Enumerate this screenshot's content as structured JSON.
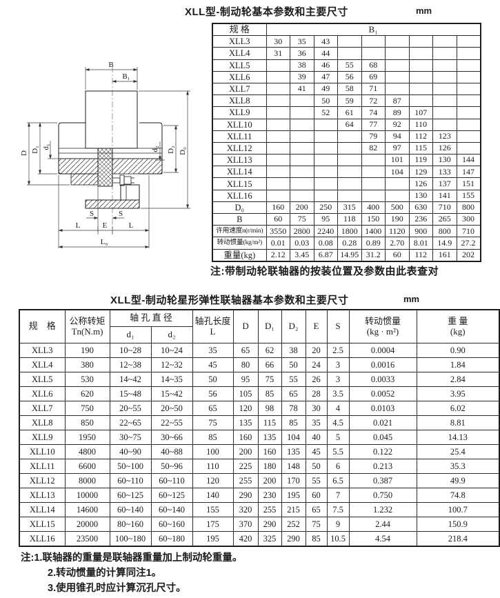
{
  "section1": {
    "title": "XLL型-制动轮基本参数和主要尺寸",
    "unit": "mm",
    "note": "注:带制动轮联轴器的按装位置及参数由此表查对"
  },
  "table1": {
    "header": [
      [
        {
          "t": "规 格"
        },
        {
          "t": "B₁",
          "colspan": 9
        }
      ]
    ],
    "rows": [
      [
        "XLL3",
        "30",
        "35",
        "43",
        "",
        "",
        "",
        "",
        "",
        ""
      ],
      [
        "XLL4",
        "31",
        "36",
        "44",
        "",
        "",
        "",
        "",
        "",
        ""
      ],
      [
        "XLL5",
        "",
        "38",
        "46",
        "55",
        "68",
        "",
        "",
        "",
        ""
      ],
      [
        "XLL6",
        "",
        "39",
        "47",
        "56",
        "69",
        "",
        "",
        "",
        ""
      ],
      [
        "XLL7",
        "",
        "41",
        "49",
        "58",
        "71",
        "",
        "",
        "",
        ""
      ],
      [
        "XLL8",
        "",
        "",
        "50",
        "59",
        "72",
        "87",
        "",
        "",
        ""
      ],
      [
        "XLL9",
        "",
        "",
        "52",
        "61",
        "74",
        "89",
        "107",
        "",
        ""
      ],
      [
        "XLL10",
        "",
        "",
        "",
        "64",
        "77",
        "92",
        "110",
        "",
        ""
      ],
      [
        "XLL11",
        "",
        "",
        "",
        "",
        "79",
        "94",
        "112",
        "123",
        ""
      ],
      [
        "XLL12",
        "",
        "",
        "",
        "",
        "82",
        "97",
        "115",
        "126",
        ""
      ],
      [
        "XLL13",
        "",
        "",
        "",
        "",
        "",
        "101",
        "119",
        "130",
        "144"
      ],
      [
        "XLL14",
        "",
        "",
        "",
        "",
        "",
        "104",
        "129",
        "133",
        "147"
      ],
      [
        "XLL15",
        "",
        "",
        "",
        "",
        "",
        "",
        "126",
        "137",
        "151"
      ],
      [
        "XLL16",
        "",
        "",
        "",
        "",
        "",
        "",
        "130",
        "141",
        "155"
      ],
      [
        "D₀",
        "160",
        "200",
        "250",
        "315",
        "400",
        "500",
        "630",
        "710",
        "800"
      ],
      [
        "B",
        "60",
        "75",
        "95",
        "118",
        "150",
        "190",
        "236",
        "265",
        "300"
      ],
      [
        "许用速度n(r/min)",
        "3550",
        "2800",
        "2240",
        "1800",
        "1400",
        "1120",
        "900",
        "800",
        "710"
      ],
      [
        "转动惯量(kg/m²)",
        "0.01",
        "0.03",
        "0.08",
        "0.28",
        "0.89",
        "2.70",
        "8.01",
        "14.9",
        "27.2"
      ],
      [
        "重量(kg)",
        "2.12",
        "3.45",
        "6.87",
        "14.95",
        "31.2",
        "60",
        "112",
        "161",
        "202"
      ]
    ]
  },
  "section2": {
    "title": "XLL型-制动轮星形弹性联轴器基本参数和主要尺寸",
    "unit": "mm"
  },
  "table2": {
    "header": [
      [
        {
          "t": "规　格",
          "rowspan": 2
        },
        {
          "t": "公称转矩\nTn(N.m)",
          "rowspan": 2
        },
        {
          "t": "轴 孔 直 径",
          "colspan": 2
        },
        {
          "t": "轴孔长度\nL",
          "rowspan": 2
        },
        {
          "t": "D",
          "rowspan": 2
        },
        {
          "t": "D₁",
          "rowspan": 2
        },
        {
          "t": "D₂",
          "rowspan": 2
        },
        {
          "t": "E",
          "rowspan": 2
        },
        {
          "t": "S",
          "rowspan": 2
        },
        {
          "t": "转动惯量\n(kg · m²)",
          "rowspan": 2
        },
        {
          "t": "重 量\n(kg)",
          "rowspan": 2
        }
      ],
      [
        {
          "t": "d₁"
        },
        {
          "t": "d₂"
        }
      ]
    ],
    "rows": [
      [
        "XLL3",
        "190",
        "10~28",
        "10~24",
        "35",
        "65",
        "62",
        "38",
        "20",
        "2.5",
        "0.0004",
        "0.90"
      ],
      [
        "XLL4",
        "380",
        "12~38",
        "12~32",
        "45",
        "80",
        "66",
        "50",
        "24",
        "3",
        "0.0016",
        "1.84"
      ],
      [
        "XLL5",
        "530",
        "14~42",
        "14~35",
        "50",
        "95",
        "75",
        "55",
        "26",
        "3",
        "0.0033",
        "2.84"
      ],
      [
        "XLL6",
        "620",
        "15~48",
        "15~42",
        "56",
        "105",
        "85",
        "65",
        "28",
        "3.5",
        "0.0052",
        "3.95"
      ],
      [
        "XLL7",
        "750",
        "20~55",
        "20~50",
        "65",
        "120",
        "98",
        "78",
        "30",
        "4",
        "0.0103",
        "6.02"
      ],
      [
        "XLL8",
        "850",
        "22~65",
        "22~55",
        "75",
        "135",
        "115",
        "85",
        "35",
        "4.5",
        "0.021",
        "8.81"
      ],
      [
        "XLL9",
        "1950",
        "30~75",
        "30~66",
        "85",
        "160",
        "135",
        "104",
        "40",
        "5",
        "0.045",
        "14.13"
      ],
      [
        "XLL10",
        "4800",
        "40~90",
        "40~88",
        "100",
        "200",
        "160",
        "135",
        "45",
        "5.5",
        "0.122",
        "25.4"
      ],
      [
        "XLL11",
        "6600",
        "50~100",
        "50~96",
        "110",
        "225",
        "180",
        "148",
        "50",
        "6",
        "0.213",
        "35.3"
      ],
      [
        "XLL12",
        "8000",
        "60~110",
        "60~110",
        "120",
        "255",
        "200",
        "170",
        "55",
        "6.5",
        "0.387",
        "49.9"
      ],
      [
        "XLL13",
        "10000",
        "60~125",
        "60~125",
        "140",
        "290",
        "230",
        "195",
        "60",
        "7",
        "0.750",
        "74.8"
      ],
      [
        "XLL14",
        "14600",
        "60~140",
        "60~140",
        "155",
        "320",
        "255",
        "215",
        "65",
        "7.5",
        "1.232",
        "100.7"
      ],
      [
        "XLL15",
        "20000",
        "80~160",
        "60~160",
        "175",
        "370",
        "290",
        "252",
        "75",
        "9",
        "2.44",
        "150.9"
      ],
      [
        "XLL16",
        "23500",
        "100~180",
        "60~180",
        "195",
        "420",
        "325",
        "290",
        "85",
        "10.5",
        "4.54",
        "218.4"
      ]
    ]
  },
  "footnotes": [
    "注:1.联轴器的重量是联轴器重量加上制动轮重量。",
    "2.转动惯量的计算同注1。",
    "3.使用锥孔时应计算沉孔尺寸。"
  ],
  "drawing": {
    "labels": {
      "B": "B",
      "B1": "B₁",
      "D": "D",
      "D1": "D₁",
      "d1": "d₁",
      "d2": "d₂",
      "D2": "D₂",
      "D0": "D₀",
      "S": "S",
      "L": "L",
      "E": "E",
      "L0": "L₀"
    }
  }
}
